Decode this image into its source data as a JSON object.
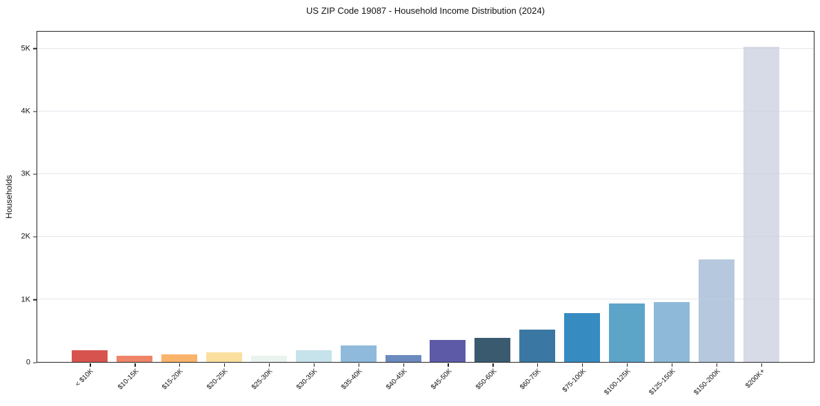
{
  "chart_data": {
    "type": "bar",
    "title": "US ZIP Code 19087 - Household Income Distribution (2024)",
    "xlabel": "",
    "ylabel": "Households",
    "ylim": [
      0,
      5280
    ],
    "grid": "horizontal-light",
    "legend": "none",
    "categories": [
      "< $10K",
      "$10-15K",
      "$15-20K",
      "$20-25K",
      "$25-30K",
      "$30-35K",
      "$35-40K",
      "$40-45K",
      "$45-50K",
      "$50-60K",
      "$60-75K",
      "$75-100K",
      "$100-125K",
      "$125-150K",
      "$150-200K",
      "$200K+"
    ],
    "values": [
      185,
      100,
      120,
      150,
      95,
      190,
      260,
      105,
      350,
      390,
      515,
      780,
      940,
      955,
      1640,
      5040
    ],
    "bar_colors": [
      "#d6544d",
      "#ee8568",
      "#fab36b",
      "#fbdf9f",
      "#eaf4ef",
      "#c6e2eb",
      "#8fbadc",
      "#6b8abe",
      "#5d5aa7",
      "#3a5a70",
      "#3a78a3",
      "#368bc1",
      "#5da4c9",
      "#8fb9d8",
      "#b5c8de",
      "#d7dae7"
    ],
    "y_ticks": [
      {
        "label": "0",
        "value": 0
      },
      {
        "label": "1K",
        "value": 1000
      },
      {
        "label": "2K",
        "value": 2000
      },
      {
        "label": "3K",
        "value": 3000
      },
      {
        "label": "4K",
        "value": 4000
      },
      {
        "label": "5K",
        "value": 5000
      }
    ]
  },
  "colors": {
    "background": "#ffffff",
    "axis": "#222222",
    "grid": "#ced1dd",
    "text": "#111111"
  }
}
